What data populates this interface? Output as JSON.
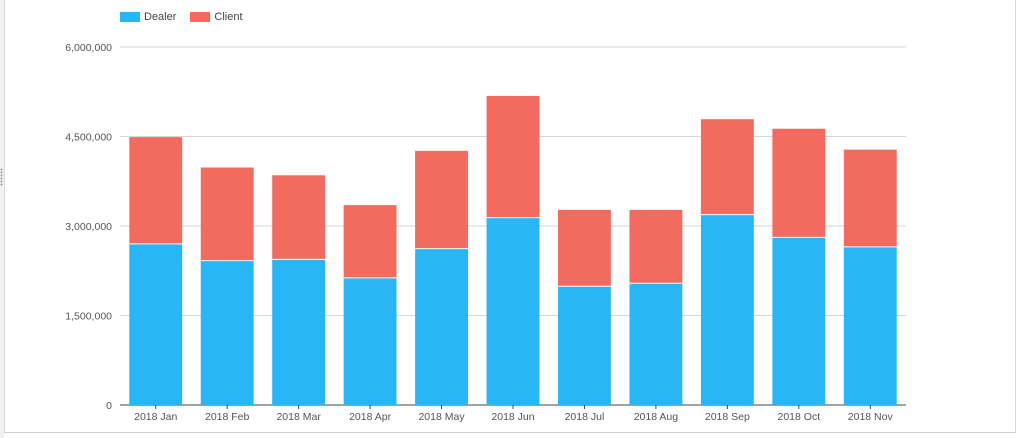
{
  "chart_data": {
    "type": "bar",
    "stacked": true,
    "categories": [
      "2018 Jan",
      "2018 Feb",
      "2018 Mar",
      "2018 Apr",
      "2018 May",
      "2018 Jun",
      "2018 Jul",
      "2018 Aug",
      "2018 Sep",
      "2018 Oct",
      "2018 Nov"
    ],
    "series": [
      {
        "name": "Dealer",
        "color": "#29b6f6",
        "values": [
          2700000,
          2420000,
          2440000,
          2130000,
          2620000,
          3140000,
          1990000,
          2040000,
          3190000,
          2810000,
          2650000
        ]
      },
      {
        "name": "Client",
        "color": "#f26b5e",
        "values": [
          1790000,
          1560000,
          1410000,
          1220000,
          1640000,
          2040000,
          1280000,
          1230000,
          1600000,
          1820000,
          1630000
        ]
      }
    ],
    "y_ticks": [
      "0",
      "1,500,000",
      "3,000,000",
      "4,500,000",
      "6,000,000"
    ],
    "y_tick_values": [
      0,
      1500000,
      3000000,
      4500000,
      6000000
    ],
    "ylim": [
      0,
      6000000
    ],
    "grid": true,
    "legend_position": "top-left"
  }
}
